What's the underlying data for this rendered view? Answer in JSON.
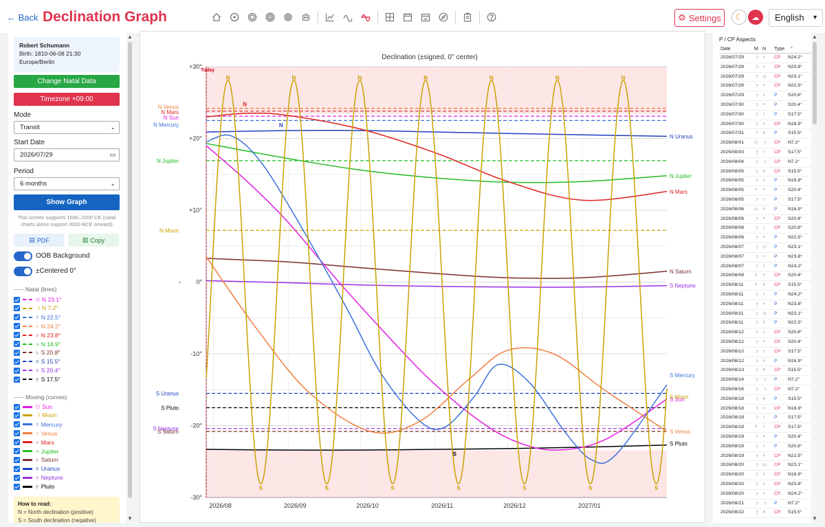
{
  "header": {
    "back_label": "← Back",
    "title": "Declination Graph",
    "settings_label": "Settings",
    "language": "English",
    "toolbar_icons": [
      "home-icon",
      "circle-dot-icon",
      "double-circle-icon",
      "target-icon",
      "filled-circle-icon",
      "robot-icon",
      "line-chart-icon",
      "wave-icon",
      "declination-icon",
      "grid-chart-icon",
      "calendar-icon",
      "calendar-check-icon",
      "compass-icon",
      "clipboard-icon",
      "help-icon"
    ]
  },
  "sidebar": {
    "natal": {
      "name": "Robert Schumann",
      "birth": "Birth: 1810-06-08 21:30",
      "location": "Europe/Berlin"
    },
    "change_natal_label": "Change Natal Data",
    "timezone_label": "Timezone +09:00",
    "mode_label": "Mode",
    "mode_value": "Transit",
    "start_date_label": "Start Date",
    "start_date_value": "2026/07/29",
    "period_label": "Period",
    "period_value": "6 months",
    "show_graph_label": "Show Graph",
    "note": "This screen supports 1600–2200 CE (natal charts alone support 3000 BCE onward)",
    "pdf_label": "PDF",
    "copy_label": "Copy",
    "oob_label": "OOB Background",
    "centered_label": "±Centered 0°",
    "natal_header": "Natal (lines)",
    "natal_items": [
      {
        "label": "☉ N 23.1°",
        "color": "#e01ee0"
      },
      {
        "label": "☽ N 7.2°",
        "color": "#c9a100"
      },
      {
        "label": "☿ N 22.5°",
        "color": "#3a6fd8"
      },
      {
        "label": "♀ N 24.2°",
        "color": "#f07d3c"
      },
      {
        "label": "♂ N 23.8°",
        "color": "#e02020"
      },
      {
        "label": "♃ N 16.9°",
        "color": "#22bb22"
      },
      {
        "label": "♄ S 20.8°",
        "color": "#7a2c2c"
      },
      {
        "label": "♅ S 15.5°",
        "color": "#1f3fbf"
      },
      {
        "label": "♆ S 20.4°",
        "color": "#9a30e0"
      },
      {
        "label": "♇ S 17.5°",
        "color": "#000000"
      }
    ],
    "moving_header": "Moving (curves)",
    "moving_items": [
      {
        "label": "☉ Sun",
        "color": "#e01ee0"
      },
      {
        "label": "☽ Moon",
        "color": "#c9a100"
      },
      {
        "label": "☿ Mercury",
        "color": "#3a6fd8"
      },
      {
        "label": "♀ Venus",
        "color": "#f07d3c"
      },
      {
        "label": "♂ Mars",
        "color": "#e02020"
      },
      {
        "label": "♃ Jupiter",
        "color": "#22bb22"
      },
      {
        "label": "♄ Saturn",
        "color": "#7a2c2c"
      },
      {
        "label": "♅ Uranus",
        "color": "#1f3fbf"
      },
      {
        "label": "♆ Neptune",
        "color": "#9a30e0"
      },
      {
        "label": "♇ Pluto",
        "color": "#000000"
      }
    ],
    "howto_title": "How to read:",
    "howto_n": "N = North declination (positive)",
    "howto_s": "S = South declination (negative)"
  },
  "aspects": {
    "title": "P / CP Aspects",
    "columns": [
      "Date",
      "M",
      "N",
      "Type",
      "°"
    ],
    "rows": [
      [
        "2026/07/29",
        "☽",
        "♀",
        "CP",
        "N24.2°"
      ],
      [
        "2026/07/29",
        "☽",
        "♂",
        "CP",
        "N23.8°"
      ],
      [
        "2026/07/29",
        "☽",
        "☉",
        "CP",
        "N23.1°"
      ],
      [
        "2026/07/29",
        "☽",
        "☿",
        "CP",
        "N22.5°"
      ],
      [
        "2026/07/29",
        "☽",
        "♄",
        "P",
        "S20.8°"
      ],
      [
        "2026/07/30",
        "☽",
        "♆",
        "P",
        "S20.4°"
      ],
      [
        "2026/07/30",
        "☽",
        "♇",
        "P",
        "S17.5°"
      ],
      [
        "2026/07/30",
        "☽",
        "♃",
        "CP",
        "N16.9°"
      ],
      [
        "2026/07/31",
        "☽",
        "♅",
        "P",
        "S15.5°"
      ],
      [
        "2026/08/01",
        "☉",
        "☽",
        "CP",
        "N7.2°"
      ],
      [
        "2026/08/03",
        "☽",
        "♇",
        "CP",
        "S17.5°"
      ],
      [
        "2026/08/04",
        "☽",
        "☽",
        "CP",
        "N7.2°"
      ],
      [
        "2026/08/05",
        "☽",
        "♅",
        "CP",
        "S15.5°"
      ],
      [
        "2026/08/05",
        "☽",
        "♃",
        "P",
        "N16.9°"
      ],
      [
        "2026/08/05",
        "☿",
        "♆",
        "P",
        "S20.4°"
      ],
      [
        "2026/08/05",
        "☽",
        "♇",
        "P",
        "S17.5°"
      ],
      [
        "2026/08/06",
        "☉",
        "♃",
        "P",
        "N16.9°"
      ],
      [
        "2026/08/06",
        "☽",
        "♆",
        "CP",
        "S20.4°"
      ],
      [
        "2026/08/06",
        "☽",
        "♄",
        "CP",
        "S20.8°"
      ],
      [
        "2026/08/06",
        "☽",
        "☿",
        "P",
        "N22.5°"
      ],
      [
        "2026/08/07",
        "☽",
        "☉",
        "P",
        "N23.1°"
      ],
      [
        "2026/08/07",
        "☽",
        "♂",
        "P",
        "N23.8°"
      ],
      [
        "2026/08/07",
        "☽",
        "♀",
        "P",
        "N24.2°"
      ],
      [
        "2026/08/08",
        "☿",
        "♆",
        "CP",
        "S20.4°"
      ],
      [
        "2026/08/11",
        "☿",
        "♅",
        "CP",
        "S15.5°"
      ],
      [
        "2026/08/11",
        "☽",
        "♀",
        "P",
        "N24.2°"
      ],
      [
        "2026/08/11",
        "☽",
        "♂",
        "P",
        "N23.8°"
      ],
      [
        "2026/08/11",
        "☽",
        "☉",
        "P",
        "N23.1°"
      ],
      [
        "2026/08/11",
        "☽",
        "☿",
        "P",
        "N22.5°"
      ],
      [
        "2026/08/12",
        "☽",
        "♄",
        "CP",
        "S20.8°"
      ],
      [
        "2026/08/12",
        "☽",
        "♆",
        "CP",
        "S20.4°"
      ],
      [
        "2026/08/12",
        "☽",
        "♇",
        "CP",
        "S17.5°"
      ],
      [
        "2026/08/12",
        "☽",
        "♃",
        "P",
        "N16.9°"
      ],
      [
        "2026/08/13",
        "☽",
        "♅",
        "CP",
        "S15.5°"
      ],
      [
        "2026/08/14",
        "☽",
        "☽",
        "P",
        "N7.2°"
      ],
      [
        "2026/08/16",
        "☽",
        "☽",
        "CP",
        "N7.2°"
      ],
      [
        "2026/08/18",
        "☽",
        "♅",
        "P",
        "S15.5°"
      ],
      [
        "2026/08/18",
        "☽",
        "♃",
        "CP",
        "N16.9°"
      ],
      [
        "2026/08/18",
        "☽",
        "♇",
        "P",
        "S17.5°"
      ],
      [
        "2026/08/18",
        "☿",
        "♇",
        "CP",
        "S17.5°"
      ],
      [
        "2026/08/19",
        "☽",
        "♆",
        "P",
        "S20.4°"
      ],
      [
        "2026/08/19",
        "☽",
        "♄",
        "P",
        "S20.8°"
      ],
      [
        "2026/08/19",
        "☽",
        "☿",
        "CP",
        "N22.5°"
      ],
      [
        "2026/08/20",
        "☽",
        "☉",
        "CP",
        "N23.1°"
      ],
      [
        "2026/08/20",
        "☽",
        "♃",
        "CP",
        "N16.9°"
      ],
      [
        "2026/08/20",
        "☽",
        "♂",
        "CP",
        "N23.8°"
      ],
      [
        "2026/08/20",
        "☽",
        "♀",
        "CP",
        "N24.2°"
      ],
      [
        "2026/08/21",
        "☽",
        "☽",
        "P",
        "N7.2°"
      ],
      [
        "2026/08/22",
        "☽",
        "♅",
        "CP",
        "S15.5°"
      ]
    ]
  },
  "chart_data": {
    "type": "line",
    "title": "Declination (±signed, 0° center)",
    "ylim": [
      -30,
      30
    ],
    "xlim": [
      "2026-07-29",
      "2027-02-05"
    ],
    "yticks": [
      "+30°",
      "+20°",
      "+10°",
      "0°",
      "-10°",
      "-20°",
      "-30°"
    ],
    "xticks": [
      {
        "label": "2026/08",
        "date": "2026-08-01"
      },
      {
        "label": "2026/09",
        "date": "2026-09-01"
      },
      {
        "label": "2026/10",
        "date": "2026-10-01"
      },
      {
        "label": "2026/11",
        "date": "2026-11-01"
      },
      {
        "label": "2026/12",
        "date": "2026-12-01"
      },
      {
        "label": "2027/01",
        "date": "2027-01-01"
      }
    ],
    "today": {
      "label": "Today",
      "date": "2026-07-29"
    },
    "oob_limit": 23.44,
    "natal_lines": [
      {
        "label": "N Venus",
        "value": 24.2,
        "color": "#f07d3c"
      },
      {
        "label": "N Mars",
        "value": 23.8,
        "color": "#e02020"
      },
      {
        "label": "N Sun",
        "value": 23.1,
        "color": "#e01ee0"
      },
      {
        "label": "N Mercury",
        "value": 22.5,
        "color": "#3a6fd8"
      },
      {
        "label": "N Jupiter",
        "value": 16.9,
        "color": "#22bb22"
      },
      {
        "label": "N Moon",
        "value": 7.2,
        "color": "#c9a100"
      },
      {
        "label": "S Uranus",
        "value": -15.5,
        "color": "#1f3fbf"
      },
      {
        "label": "S Pluto",
        "value": -17.5,
        "color": "#000000"
      },
      {
        "label": "S Neptune",
        "value": -20.4,
        "color": "#9a30e0"
      },
      {
        "label": "S Saturn",
        "value": -20.8,
        "color": "#7a2c2c"
      }
    ],
    "series": [
      {
        "name": "Uranus",
        "end_label": "N Uranus",
        "color": "#1f3fbf",
        "x": [
          "2026-07-29",
          "2026-09-01",
          "2026-10-01",
          "2026-11-01",
          "2026-12-01",
          "2027-01-01",
          "2027-02-05"
        ],
        "y": [
          20.9,
          21.1,
          21.1,
          20.9,
          20.7,
          20.5,
          20.3
        ]
      },
      {
        "name": "Jupiter",
        "end_label": "N Jupiter",
        "color": "#22bb22",
        "x": [
          "2026-07-29",
          "2026-09-01",
          "2026-10-01",
          "2026-11-01",
          "2026-12-01",
          "2027-01-01",
          "2027-02-05"
        ],
        "y": [
          19.3,
          17.2,
          15.6,
          14.5,
          13.9,
          14.0,
          14.8
        ]
      },
      {
        "name": "Mars",
        "end_label": "N Mars",
        "color": "#e02020",
        "x": [
          "2026-07-29",
          "2026-08-15",
          "2026-09-01",
          "2026-10-01",
          "2026-11-01",
          "2026-12-01",
          "2027-01-01",
          "2027-02-05"
        ],
        "y": [
          23.0,
          23.5,
          23.2,
          21.3,
          18.0,
          14.0,
          11.4,
          12.6
        ]
      },
      {
        "name": "Saturn",
        "end_label": "N Saturn",
        "color": "#7a2c2c",
        "x": [
          "2026-07-29",
          "2026-09-01",
          "2026-10-01",
          "2026-11-01",
          "2026-12-01",
          "2027-01-01",
          "2027-02-05"
        ],
        "y": [
          3.3,
          2.8,
          2.0,
          1.2,
          0.6,
          0.6,
          1.5
        ]
      },
      {
        "name": "Neptune",
        "end_label": "S Neptune",
        "color": "#9a30e0",
        "x": [
          "2026-07-29",
          "2026-09-01",
          "2026-10-01",
          "2026-11-01",
          "2026-12-01",
          "2027-01-01",
          "2027-02-05"
        ],
        "y": [
          0.2,
          -0.1,
          -0.4,
          -0.6,
          -0.7,
          -0.7,
          -0.5
        ]
      },
      {
        "name": "Pluto",
        "end_label": "S Pluto",
        "color": "#000000",
        "x": [
          "2026-07-29",
          "2026-09-01",
          "2026-10-01",
          "2026-11-01",
          "2026-12-01",
          "2027-01-01",
          "2027-02-05"
        ],
        "y": [
          -23.3,
          -23.4,
          -23.4,
          -23.3,
          -23.2,
          -23.0,
          -22.7
        ]
      },
      {
        "name": "Sun",
        "end_label": "S Sun",
        "color": "#e01ee0",
        "x": [
          "2026-07-29",
          "2026-08-15",
          "2026-09-01",
          "2026-09-22",
          "2026-10-15",
          "2026-11-01",
          "2026-11-20",
          "2026-12-05",
          "2026-12-21",
          "2027-01-10",
          "2027-02-05"
        ],
        "y": [
          19.0,
          14.0,
          8.3,
          0.0,
          -8.5,
          -14.3,
          -19.5,
          -22.3,
          -23.4,
          -22.0,
          -16.3
        ]
      },
      {
        "name": "Mercury",
        "end_label": "S Mercury",
        "color": "#3a6fd8",
        "x": [
          "2026-07-29",
          "2026-08-08",
          "2026-08-20",
          "2026-09-05",
          "2026-09-25",
          "2026-10-10",
          "2026-10-26",
          "2026-11-05",
          "2026-11-17",
          "2026-11-27",
          "2026-12-10",
          "2026-12-25",
          "2027-01-05",
          "2027-01-15",
          "2027-02-05"
        ],
        "y": [
          19.5,
          20.4,
          17.0,
          8.5,
          -3.5,
          -13.0,
          -19.5,
          -20.2,
          -16.0,
          -11.5,
          -14.0,
          -21.0,
          -24.8,
          -24.0,
          -14.3
        ]
      },
      {
        "name": "Venus",
        "end_label": "S Venus",
        "color": "#f07d3c",
        "x": [
          "2026-07-29",
          "2026-08-20",
          "2026-09-10",
          "2026-10-05",
          "2026-10-25",
          "2026-11-15",
          "2026-12-01",
          "2026-12-20",
          "2027-01-10",
          "2027-02-05"
        ],
        "y": [
          3.5,
          -7.0,
          -15.5,
          -20.8,
          -19.5,
          -13.5,
          -9.5,
          -10.0,
          -15.0,
          -20.8
        ]
      },
      {
        "name": "Moon",
        "end_label": "S Moon",
        "color": "#c9a100",
        "period_days": 27.32,
        "amplitude": 28.1,
        "first_north_peak": "2026-08-07",
        "end_value": -16.0
      }
    ],
    "peak_labels": {
      "north": "N",
      "south": "S"
    },
    "inline_labels": [
      {
        "text": "N",
        "date": "2026-08-14",
        "value": 24.5,
        "color": "#e02020"
      },
      {
        "text": "N",
        "date": "2026-08-29",
        "value": 21.6,
        "color": "#1f3fbf"
      },
      {
        "text": "S",
        "date": "2026-11-09",
        "value": -24.2,
        "color": "#000000"
      }
    ]
  }
}
